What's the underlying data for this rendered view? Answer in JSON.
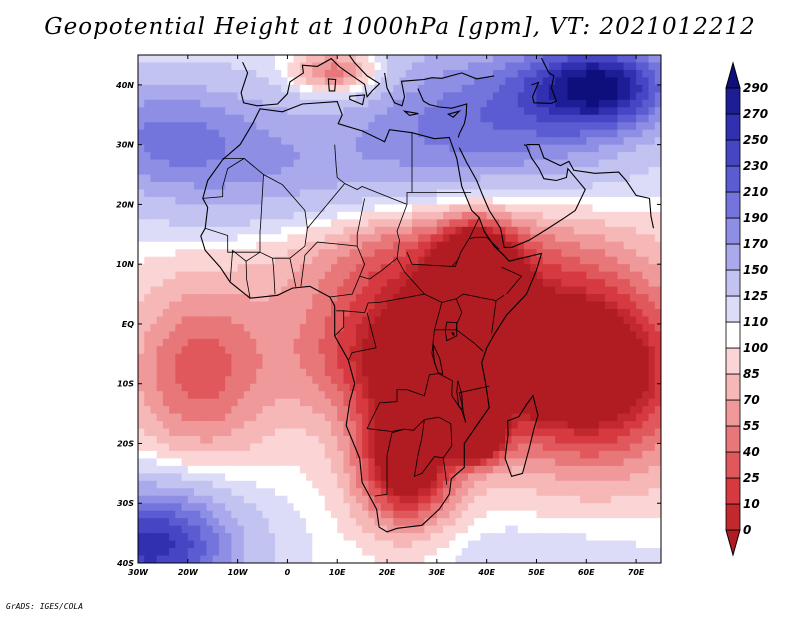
{
  "title": "Geopotential Height at 1000hPa [gpm], VT: 2021012212",
  "credit": "GrADS: IGES/COLA",
  "map": {
    "lon_range": [
      -30,
      75
    ],
    "lat_range": [
      -40,
      45
    ],
    "lon_ticks": [
      {
        "value": -30,
        "label": "30W"
      },
      {
        "value": -20,
        "label": "20W"
      },
      {
        "value": -10,
        "label": "10W"
      },
      {
        "value": 0,
        "label": "0"
      },
      {
        "value": 10,
        "label": "10E"
      },
      {
        "value": 20,
        "label": "20E"
      },
      {
        "value": 30,
        "label": "30E"
      },
      {
        "value": 40,
        "label": "40E"
      },
      {
        "value": 50,
        "label": "50E"
      },
      {
        "value": 60,
        "label": "60E"
      },
      {
        "value": 70,
        "label": "70E"
      }
    ],
    "lat_ticks": [
      {
        "value": 40,
        "label": "40N"
      },
      {
        "value": 30,
        "label": "30N"
      },
      {
        "value": 20,
        "label": "20N"
      },
      {
        "value": 10,
        "label": "10N"
      },
      {
        "value": 0,
        "label": "EQ"
      },
      {
        "value": -10,
        "label": "10S"
      },
      {
        "value": -20,
        "label": "20S"
      },
      {
        "value": -30,
        "label": "30S"
      },
      {
        "value": -40,
        "label": "40S"
      }
    ],
    "field_blobs": [
      {
        "lon": 43,
        "lat": 35,
        "rlon": 30,
        "rlat": 13,
        "v": 200
      },
      {
        "lon": 63,
        "lat": 40,
        "rlon": 14,
        "rlat": 7,
        "v": 255
      },
      {
        "lon": 15,
        "lat": 25,
        "rlon": 28,
        "rlat": 12,
        "v": 135
      },
      {
        "lon": -25,
        "lat": 32,
        "rlon": 22,
        "rlat": 10,
        "v": 185
      },
      {
        "lon": -10,
        "lat": 23,
        "rlon": 25,
        "rlat": 10,
        "v": 135
      },
      {
        "lon": 30,
        "lat": 12,
        "rlon": 30,
        "rlat": 10,
        "v": 30
      },
      {
        "lon": 10,
        "lat": 42,
        "rlon": 9,
        "rlat": 4,
        "v": 25
      },
      {
        "lon": -18,
        "lat": -8,
        "rlon": 14,
        "rlat": 15,
        "v": 35
      },
      {
        "lon": 30,
        "lat": -5,
        "rlon": 25,
        "rlat": 12,
        "v": -35
      },
      {
        "lon": 38,
        "lat": 8,
        "rlon": 7,
        "rlat": 8,
        "v": -40
      },
      {
        "lon": 24,
        "lat": -23,
        "rlon": 10,
        "rlat": 11,
        "v": -30
      },
      {
        "lon": 38,
        "lat": -19,
        "rlon": 5,
        "rlat": 4,
        "v": -50
      },
      {
        "lon": 62,
        "lat": -8,
        "rlon": 20,
        "rlat": 16,
        "v": -25
      },
      {
        "lon": -27,
        "lat": -37,
        "rlon": 17,
        "rlat": 10,
        "v": 260
      },
      {
        "lon": 50,
        "lat": -38,
        "rlon": 30,
        "rlat": 6,
        "v": 120
      }
    ]
  },
  "colorbar": {
    "levels": [
      "0",
      "10",
      "25",
      "40",
      "55",
      "70",
      "85",
      "100",
      "110",
      "125",
      "150",
      "170",
      "190",
      "210",
      "230",
      "250",
      "270",
      "290"
    ],
    "colors": [
      "#b01c22",
      "#c2292f",
      "#d63a40",
      "#e0585c",
      "#e87779",
      "#f0999a",
      "#f6b7b7",
      "#fbd5d5",
      "#ffffff",
      "#dcdcf8",
      "#c3c3f2",
      "#a9a9ec",
      "#8e8ee5",
      "#7474dd",
      "#5b5bd2",
      "#4646c4",
      "#3030b0",
      "#1d1d96",
      "#0e0e7c"
    ]
  }
}
